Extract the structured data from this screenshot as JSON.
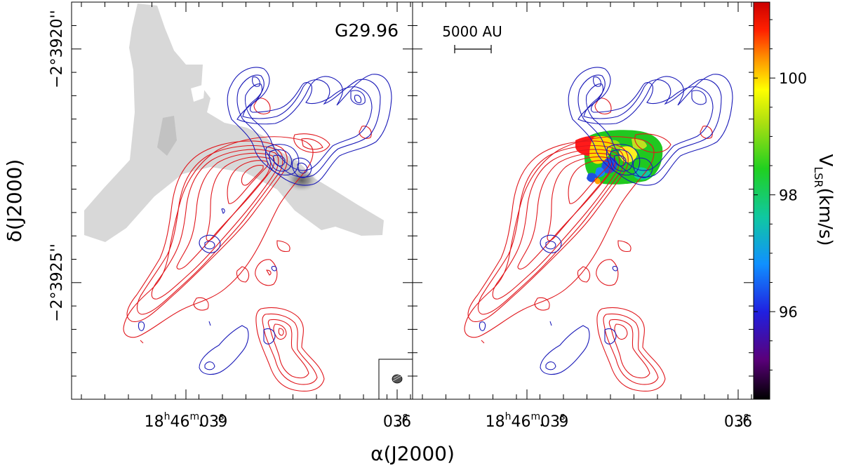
{
  "chart_data": [
    {
      "type": "contour",
      "panel": "left",
      "label": "G29.96",
      "x_ticks": [
        {
          "h": "18",
          "m": "46",
          "s": "03",
          "frac": "9",
          "sep": "."
        },
        {
          "s": "03",
          "frac": "6",
          "sep": "."
        }
      ],
      "y_ticks": [
        {
          "deg": "−2°39",
          "min": "",
          "sec": "20''"
        },
        {
          "deg": "−2°39",
          "min": "",
          "sec": "25''"
        }
      ],
      "xlabel": "α(J2000)",
      "ylabel": "δ(J2000)",
      "layers": [
        "grey continuum",
        "red-shifted contours",
        "blue-shifted contours"
      ],
      "colors": {
        "red": "#e0161c",
        "blue": "#1a1ab8",
        "grey": "#d6d6d6",
        "grey_dark": "#c4c4c4"
      }
    },
    {
      "type": "contour",
      "panel": "right",
      "scalebar": "5000 AU",
      "colorbar": {
        "ticks": [
          96,
          98,
          100
        ],
        "range": [
          94.5,
          101.3
        ],
        "unit_label": "V",
        "unit_sub": "LSR",
        "unit_rest": "(km/s)"
      },
      "x_ticks": [
        {
          "h": "18",
          "m": "46",
          "s": "03",
          "frac": "9",
          "sep": "."
        },
        {
          "s": "03",
          "frac": "6",
          "sep": "."
        }
      ]
    }
  ]
}
